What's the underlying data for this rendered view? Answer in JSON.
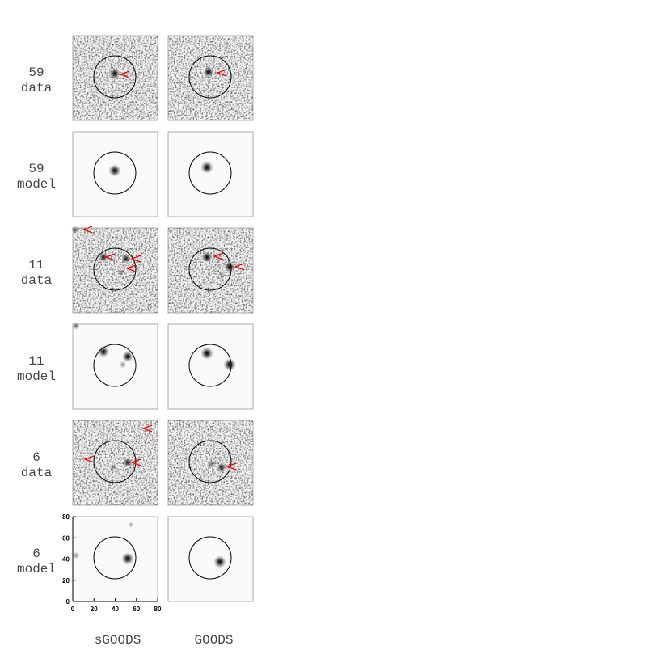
{
  "rows": [
    {
      "id": "59",
      "kind": "data"
    },
    {
      "id": "59",
      "kind": "model"
    },
    {
      "id": "11",
      "kind": "data"
    },
    {
      "id": "11",
      "kind": "model"
    },
    {
      "id": "6",
      "kind": "data"
    },
    {
      "id": "6",
      "kind": "model"
    }
  ],
  "columns": [
    "sGOODS",
    "GOODS"
  ],
  "axes": {
    "xlim": [
      0,
      80
    ],
    "ylim": [
      0,
      80
    ],
    "xticks": [
      0,
      20,
      40,
      60,
      80
    ],
    "yticks": [
      0,
      20,
      40,
      60,
      80
    ]
  }
}
